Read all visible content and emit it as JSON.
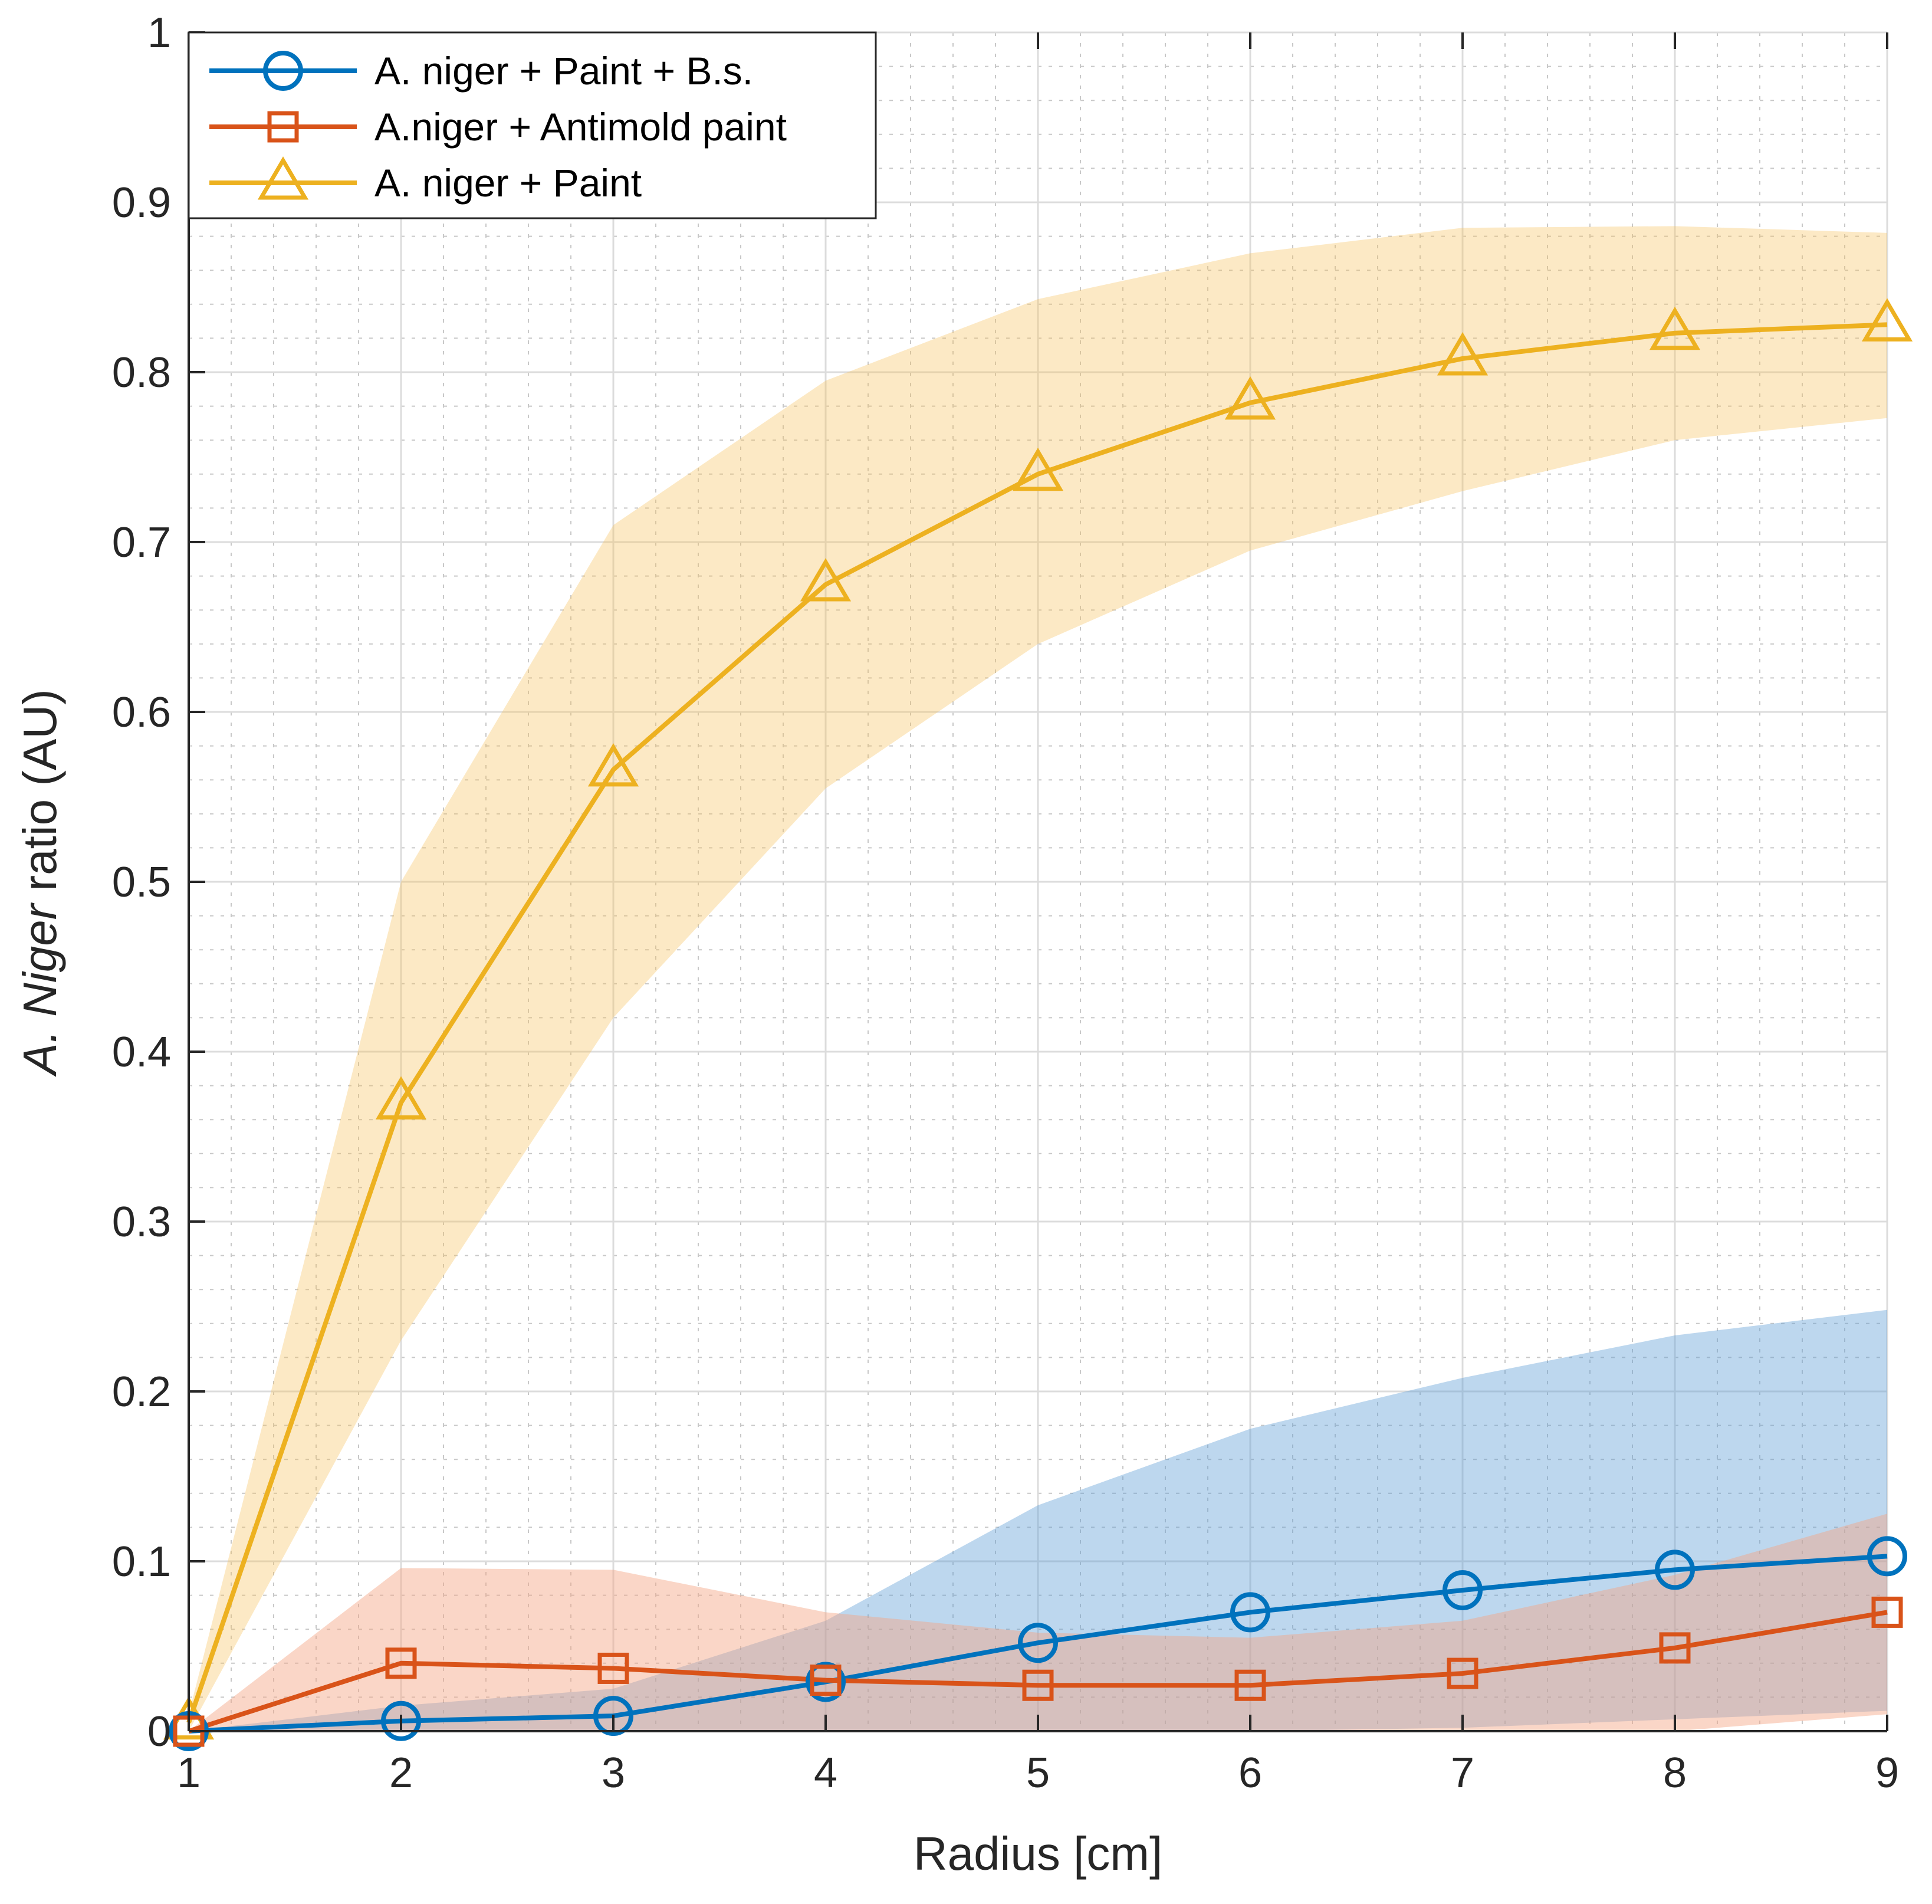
{
  "chart_data": {
    "type": "line",
    "title": "",
    "xlabel": "Radius [cm]",
    "ylabel_italic": "A. Niger",
    "ylabel_rest": " ratio (AU)",
    "x": [
      1,
      2,
      3,
      4,
      5,
      6,
      7,
      8,
      9
    ],
    "xlim": [
      1,
      9
    ],
    "ylim": [
      0,
      1
    ],
    "xticks": [
      1,
      2,
      3,
      4,
      5,
      6,
      7,
      8,
      9
    ],
    "yticks": [
      0,
      0.1,
      0.2,
      0.3,
      0.4,
      0.5,
      0.6,
      0.7,
      0.8,
      0.9,
      1
    ],
    "xtick_labels": [
      "1",
      "2",
      "3",
      "4",
      "5",
      "6",
      "7",
      "8",
      "9"
    ],
    "ytick_labels": [
      "0",
      "0.1",
      "0.2",
      "0.3",
      "0.4",
      "0.5",
      "0.6",
      "0.7",
      "0.8",
      "0.9",
      "1"
    ],
    "grid": true,
    "minor_grid": true,
    "legend_position": "top-left",
    "series": [
      {
        "name": "A. niger + Paint + B.s.",
        "color": "#0072BD",
        "marker": "circle",
        "values": [
          0.0,
          0.006,
          0.009,
          0.029,
          0.052,
          0.07,
          0.083,
          0.095,
          0.103
        ],
        "band_lower": [
          0.0,
          0.0,
          0.0,
          0.0,
          0.0,
          0.0,
          0.002,
          0.007,
          0.012
        ],
        "band_upper": [
          0.0,
          0.015,
          0.025,
          0.065,
          0.133,
          0.178,
          0.208,
          0.233,
          0.248
        ]
      },
      {
        "name": "A.niger + Antimold paint",
        "color": "#D95319",
        "marker": "square",
        "values": [
          0.0,
          0.04,
          0.037,
          0.03,
          0.027,
          0.027,
          0.034,
          0.049,
          0.07
        ],
        "band_lower": [
          0.0,
          0.0,
          0.0,
          0.0,
          0.0,
          0.0,
          0.0,
          0.0,
          0.01
        ],
        "band_upper": [
          0.0,
          0.096,
          0.095,
          0.07,
          0.058,
          0.055,
          0.065,
          0.092,
          0.128
        ]
      },
      {
        "name": "A. niger + Paint",
        "color": "#EDB120",
        "marker": "triangle",
        "values": [
          0.005,
          0.37,
          0.566,
          0.675,
          0.74,
          0.782,
          0.808,
          0.823,
          0.828
        ],
        "band_lower": [
          0.0,
          0.23,
          0.42,
          0.555,
          0.64,
          0.695,
          0.73,
          0.76,
          0.773
        ],
        "band_upper": [
          0.01,
          0.5,
          0.71,
          0.795,
          0.843,
          0.87,
          0.885,
          0.886,
          0.882
        ]
      }
    ]
  }
}
